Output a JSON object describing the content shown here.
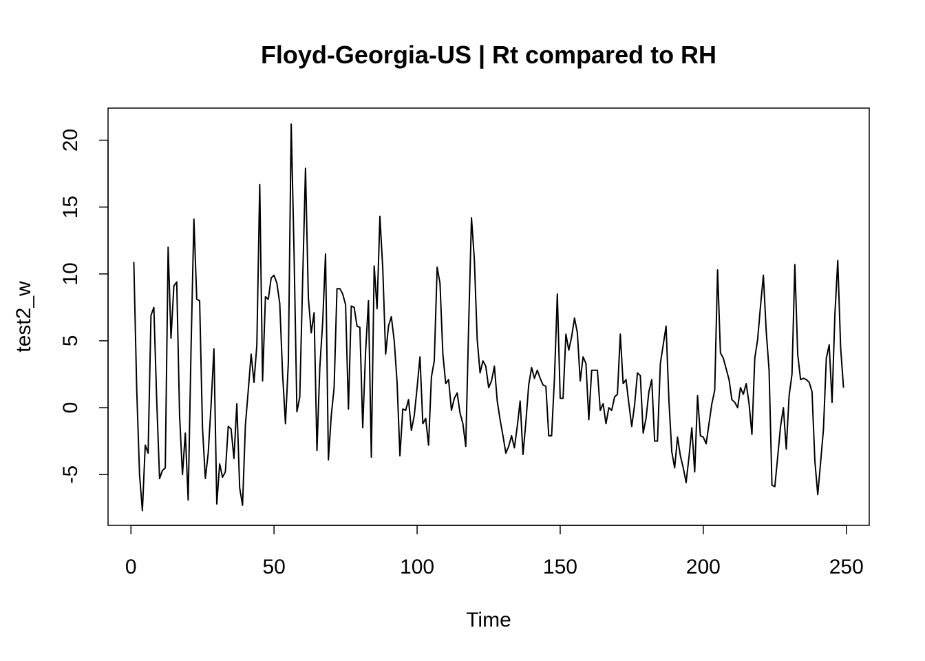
{
  "chart_data": {
    "type": "line",
    "title": "Floyd-Georgia-US | Rt compared to RH",
    "xlabel": "Time",
    "ylabel": "test2_w",
    "xlim": [
      -8,
      258
    ],
    "ylim": [
      -8.8,
      22.4
    ],
    "x_ticks": [
      0,
      50,
      100,
      150,
      200,
      250
    ],
    "y_ticks": [
      -5,
      0,
      5,
      10,
      15,
      20
    ],
    "grid": false,
    "legend": "none",
    "line_color": "#000000",
    "series": [
      {
        "x_start": 1,
        "x_step": 1,
        "values": [
          10.9,
          1.5,
          -5.0,
          -7.7,
          -2.8,
          -3.4,
          6.9,
          7.5,
          0.6,
          -5.3,
          -4.7,
          -4.5,
          12.0,
          5.2,
          9.1,
          9.4,
          -0.6,
          -5.0,
          -1.9,
          -6.9,
          4.4,
          14.1,
          8.1,
          8.0,
          -1.5,
          -5.3,
          -3.4,
          0.2,
          4.4,
          -7.2,
          -4.2,
          -5.2,
          -4.8,
          -1.4,
          -1.6,
          -3.8,
          0.3,
          -6.0,
          -7.3,
          -1.3,
          1.3,
          4.0,
          1.9,
          4.7,
          16.7,
          2.0,
          8.3,
          8.1,
          9.7,
          9.9,
          9.3,
          7.8,
          2.5,
          -1.2,
          3.4,
          21.2,
          11.6,
          -0.3,
          0.8,
          9.5,
          17.9,
          8.2,
          5.6,
          7.1,
          -3.2,
          3.0,
          6.4,
          11.5,
          -3.9,
          -0.6,
          1.5,
          8.9,
          8.9,
          8.5,
          7.7,
          -0.1,
          7.6,
          7.5,
          6.1,
          6.0,
          -1.5,
          4.2,
          8.0,
          -3.7,
          10.6,
          7.4,
          14.3,
          10.4,
          4.0,
          6.1,
          6.8,
          5.0,
          1.9,
          -3.6,
          -0.1,
          -0.2,
          0.6,
          -1.7,
          -0.6,
          1.5,
          3.8,
          -1.2,
          -0.8,
          -2.8,
          2.3,
          3.5,
          10.5,
          9.3,
          4.0,
          1.8,
          2.1,
          -0.2,
          0.7,
          1.1,
          -0.4,
          -1.2,
          -2.9,
          6.0,
          14.2,
          11.1,
          5.1,
          2.6,
          3.5,
          3.1,
          1.5,
          2.0,
          3.1,
          0.5,
          -0.9,
          -2.1,
          -3.4,
          -2.9,
          -2.1,
          -3.0,
          -1.4,
          0.5,
          -3.5,
          -1.1,
          1.7,
          3.0,
          2.2,
          2.8,
          2.2,
          1.7,
          1.6,
          -2.1,
          -2.1,
          2.2,
          8.5,
          0.7,
          0.7,
          5.5,
          4.3,
          5.3,
          6.7,
          5.6,
          2.0,
          3.8,
          3.3,
          -0.9,
          2.8,
          2.8,
          2.8,
          -0.2,
          0.3,
          -1.2,
          0.0,
          -0.2,
          0.8,
          1.0,
          5.5,
          1.8,
          2.1,
          0.3,
          -1.4,
          0.2,
          2.6,
          2.4,
          -1.9,
          -0.8,
          1.2,
          2.1,
          -2.5,
          -2.5,
          3.3,
          4.7,
          6.1,
          0.5,
          -3.3,
          -4.5,
          -2.2,
          -3.6,
          -4.5,
          -5.6,
          -3.7,
          -1.5,
          -4.8,
          0.9,
          -2.1,
          -2.2,
          -2.7,
          -1.2,
          0.3,
          1.3,
          10.3,
          4.1,
          3.7,
          2.9,
          2.1,
          0.6,
          0.4,
          0.0,
          1.5,
          1.0,
          1.8,
          0.3,
          -2.0,
          3.7,
          5.1,
          7.6,
          9.9,
          5.7,
          2.8,
          -5.8,
          -5.9,
          -3.7,
          -1.4,
          0.0,
          -3.1,
          0.9,
          2.5,
          10.7,
          4.0,
          2.1,
          2.2,
          2.1,
          1.9,
          1.2,
          -4.0,
          -6.5,
          -4.1,
          -1.6,
          3.7,
          4.7,
          0.4,
          7.0,
          11.0,
          4.5,
          1.5
        ]
      }
    ]
  }
}
